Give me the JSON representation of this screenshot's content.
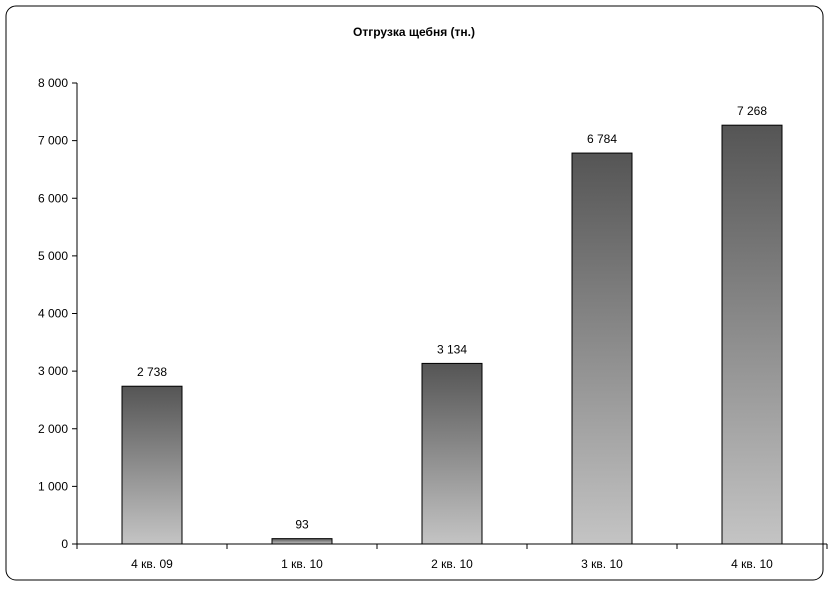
{
  "chart_data": {
    "type": "bar",
    "title": "Отгрузка щебня (тн.)",
    "xlabel": "",
    "ylabel": "",
    "categories": [
      "4 кв. 09",
      "1 кв. 10",
      "2 кв. 10",
      "3 кв. 10",
      "4 кв. 10"
    ],
    "values": [
      2738,
      93,
      3134,
      6784,
      7268
    ],
    "value_labels": [
      "2 738",
      "93",
      "3 134",
      "6 784",
      "7 268"
    ],
    "ylim": [
      0,
      8000
    ],
    "yticks": [
      0,
      1000,
      2000,
      3000,
      4000,
      5000,
      6000,
      7000,
      8000
    ],
    "ytick_labels": [
      "0",
      "1 000",
      "2 000",
      "3 000",
      "4 000",
      "5 000",
      "6 000",
      "7 000",
      "8 000"
    ],
    "grid": false,
    "legend": "none",
    "colors": {
      "bar_top": "#555555",
      "bar_bottom": "#c4c4c4",
      "axis": "#000000",
      "frame": "#000000"
    }
  }
}
